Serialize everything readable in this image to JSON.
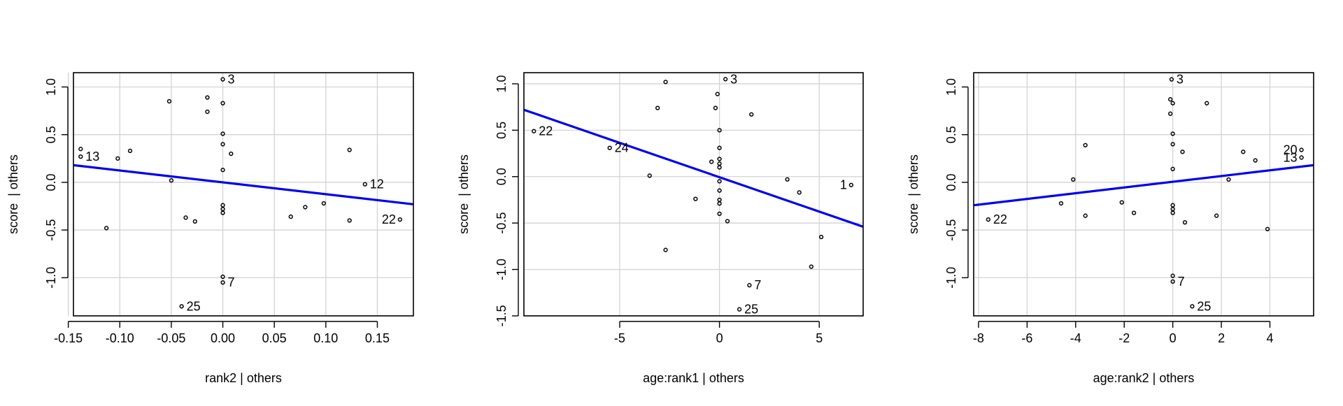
{
  "colors": {
    "fit_line": "#0000ee",
    "grid": "#d3d3d3",
    "frame": "#000000",
    "point": "#000000"
  },
  "chart_data": [
    {
      "type": "scatter",
      "xlabel": "rank2 | others",
      "ylabel": "score  | others",
      "xlim": [
        -0.145,
        0.185
      ],
      "ylim": [
        -1.4,
        1.15
      ],
      "xticks": [
        -0.15,
        -0.1,
        -0.05,
        0.0,
        0.05,
        0.1,
        0.15
      ],
      "xtick_labels": [
        "-0.15",
        "-0.10",
        "-0.05",
        "0.00",
        "0.05",
        "0.10",
        "0.15"
      ],
      "yticks": [
        -1.0,
        -0.5,
        0.0,
        0.5,
        1.0
      ],
      "ytick_labels": [
        "-1.0",
        "-0.5",
        "0.0",
        "0.5",
        "1.0"
      ],
      "grid": true,
      "fit_line": {
        "x": [
          -0.145,
          0.185
        ],
        "y": [
          0.18,
          -0.23
        ]
      },
      "points": [
        {
          "x": 0.0,
          "y": 1.08,
          "label": "3"
        },
        {
          "x": -0.052,
          "y": 0.85,
          "label": ""
        },
        {
          "x": -0.015,
          "y": 0.89,
          "label": ""
        },
        {
          "x": -0.015,
          "y": 0.74,
          "label": ""
        },
        {
          "x": 0.0,
          "y": 0.83,
          "label": ""
        },
        {
          "x": 0.0,
          "y": 0.51,
          "label": ""
        },
        {
          "x": 0.0,
          "y": 0.4,
          "label": ""
        },
        {
          "x": 0.008,
          "y": 0.3,
          "label": ""
        },
        {
          "x": 0.0,
          "y": 0.13,
          "label": ""
        },
        {
          "x": -0.138,
          "y": 0.35,
          "label": ""
        },
        {
          "x": -0.138,
          "y": 0.27,
          "label": "13"
        },
        {
          "x": -0.102,
          "y": 0.25,
          "label": ""
        },
        {
          "x": -0.09,
          "y": 0.33,
          "label": ""
        },
        {
          "x": -0.05,
          "y": 0.02,
          "label": ""
        },
        {
          "x": 0.123,
          "y": 0.34,
          "label": ""
        },
        {
          "x": 0.138,
          "y": -0.02,
          "label": "12"
        },
        {
          "x": 0.0,
          "y": -0.24,
          "label": ""
        },
        {
          "x": 0.0,
          "y": -0.28,
          "label": ""
        },
        {
          "x": 0.0,
          "y": -0.32,
          "label": ""
        },
        {
          "x": -0.036,
          "y": -0.37,
          "label": ""
        },
        {
          "x": -0.027,
          "y": -0.41,
          "label": ""
        },
        {
          "x": -0.113,
          "y": -0.48,
          "label": ""
        },
        {
          "x": 0.066,
          "y": -0.36,
          "label": ""
        },
        {
          "x": 0.08,
          "y": -0.26,
          "label": ""
        },
        {
          "x": 0.098,
          "y": -0.22,
          "label": ""
        },
        {
          "x": 0.123,
          "y": -0.4,
          "label": ""
        },
        {
          "x": 0.172,
          "y": -0.39,
          "label": "22"
        },
        {
          "x": 0.0,
          "y": -0.99,
          "label": ""
        },
        {
          "x": 0.0,
          "y": -1.05,
          "label": "7"
        },
        {
          "x": -0.04,
          "y": -1.3,
          "label": "25"
        }
      ]
    },
    {
      "type": "scatter",
      "xlabel": "age:rank1 | others",
      "ylabel": "score  | others",
      "xlim": [
        -9.8,
        7.2
      ],
      "ylim": [
        -1.5,
        1.12
      ],
      "xticks": [
        -5,
        0,
        5
      ],
      "xtick_labels": [
        "-5",
        "0",
        "5"
      ],
      "yticks": [
        -1.5,
        -1.0,
        -0.5,
        0.0,
        0.5,
        1.0
      ],
      "ytick_labels": [
        "-1.5",
        "-1.0",
        "-0.5",
        "0.0",
        "0.5",
        "1.0"
      ],
      "grid": true,
      "fit_line": {
        "x": [
          -9.8,
          7.2
        ],
        "y": [
          0.72,
          -0.54
        ]
      },
      "points": [
        {
          "x": 0.3,
          "y": 1.05,
          "label": "3"
        },
        {
          "x": -2.7,
          "y": 1.02,
          "label": ""
        },
        {
          "x": -0.1,
          "y": 0.89,
          "label": ""
        },
        {
          "x": -3.1,
          "y": 0.74,
          "label": ""
        },
        {
          "x": -0.2,
          "y": 0.74,
          "label": ""
        },
        {
          "x": 1.6,
          "y": 0.67,
          "label": ""
        },
        {
          "x": 0.0,
          "y": 0.5,
          "label": ""
        },
        {
          "x": -9.3,
          "y": 0.49,
          "label": "22"
        },
        {
          "x": -5.5,
          "y": 0.31,
          "label": "24"
        },
        {
          "x": 0.0,
          "y": 0.31,
          "label": ""
        },
        {
          "x": 0.0,
          "y": 0.19,
          "label": ""
        },
        {
          "x": -0.4,
          "y": 0.16,
          "label": ""
        },
        {
          "x": 0.0,
          "y": 0.14,
          "label": ""
        },
        {
          "x": 0.0,
          "y": 0.1,
          "label": ""
        },
        {
          "x": -3.5,
          "y": 0.01,
          "label": ""
        },
        {
          "x": 0.0,
          "y": -0.05,
          "label": ""
        },
        {
          "x": 3.4,
          "y": -0.03,
          "label": ""
        },
        {
          "x": 6.6,
          "y": -0.09,
          "label": "1"
        },
        {
          "x": 0.0,
          "y": -0.15,
          "label": ""
        },
        {
          "x": 4.0,
          "y": -0.17,
          "label": ""
        },
        {
          "x": -1.2,
          "y": -0.24,
          "label": ""
        },
        {
          "x": 0.0,
          "y": -0.25,
          "label": ""
        },
        {
          "x": 0.0,
          "y": -0.29,
          "label": ""
        },
        {
          "x": 0.0,
          "y": -0.4,
          "label": ""
        },
        {
          "x": 0.4,
          "y": -0.48,
          "label": ""
        },
        {
          "x": 5.1,
          "y": -0.65,
          "label": ""
        },
        {
          "x": -2.7,
          "y": -0.79,
          "label": ""
        },
        {
          "x": 4.6,
          "y": -0.97,
          "label": ""
        },
        {
          "x": 1.5,
          "y": -1.17,
          "label": "7"
        },
        {
          "x": 1.0,
          "y": -1.43,
          "label": "25"
        }
      ]
    },
    {
      "type": "scatter",
      "xlabel": "age:rank2 | others",
      "ylabel": "score  | others",
      "xlim": [
        -8.2,
        5.8
      ],
      "ylim": [
        -1.4,
        1.15
      ],
      "xticks": [
        -8,
        -6,
        -4,
        -2,
        0,
        2,
        4
      ],
      "xtick_labels": [
        "-8",
        "-6",
        "-4",
        "-2",
        "0",
        "2",
        "4"
      ],
      "yticks": [
        -1.0,
        -0.5,
        0.0,
        0.5,
        1.0
      ],
      "ytick_labels": [
        "-1.0",
        "-0.5",
        "0.0",
        "0.5",
        "1.0"
      ],
      "grid": true,
      "fit_line": {
        "x": [
          -8.2,
          5.8
        ],
        "y": [
          -0.24,
          0.18
        ]
      },
      "points": [
        {
          "x": -0.05,
          "y": 1.08,
          "label": "3"
        },
        {
          "x": -0.1,
          "y": 0.87,
          "label": ""
        },
        {
          "x": 0.0,
          "y": 0.83,
          "label": ""
        },
        {
          "x": 1.4,
          "y": 0.83,
          "label": ""
        },
        {
          "x": -0.1,
          "y": 0.72,
          "label": ""
        },
        {
          "x": 0.0,
          "y": 0.51,
          "label": ""
        },
        {
          "x": 0.0,
          "y": 0.4,
          "label": ""
        },
        {
          "x": -3.6,
          "y": 0.39,
          "label": ""
        },
        {
          "x": 0.4,
          "y": 0.32,
          "label": ""
        },
        {
          "x": 2.9,
          "y": 0.32,
          "label": ""
        },
        {
          "x": 5.3,
          "y": 0.34,
          "label": "20"
        },
        {
          "x": 5.3,
          "y": 0.26,
          "label": "13"
        },
        {
          "x": 3.4,
          "y": 0.23,
          "label": ""
        },
        {
          "x": 0.0,
          "y": 0.14,
          "label": ""
        },
        {
          "x": -4.1,
          "y": 0.03,
          "label": ""
        },
        {
          "x": 2.3,
          "y": 0.03,
          "label": ""
        },
        {
          "x": -4.6,
          "y": -0.22,
          "label": ""
        },
        {
          "x": -2.1,
          "y": -0.21,
          "label": ""
        },
        {
          "x": 0.0,
          "y": -0.24,
          "label": ""
        },
        {
          "x": 0.0,
          "y": -0.28,
          "label": ""
        },
        {
          "x": -1.6,
          "y": -0.32,
          "label": ""
        },
        {
          "x": 0.0,
          "y": -0.32,
          "label": ""
        },
        {
          "x": -3.6,
          "y": -0.35,
          "label": ""
        },
        {
          "x": 1.8,
          "y": -0.35,
          "label": ""
        },
        {
          "x": 0.5,
          "y": -0.42,
          "label": ""
        },
        {
          "x": -7.6,
          "y": -0.39,
          "label": "22"
        },
        {
          "x": 3.9,
          "y": -0.49,
          "label": ""
        },
        {
          "x": 0.0,
          "y": -0.98,
          "label": ""
        },
        {
          "x": 0.0,
          "y": -1.04,
          "label": "7"
        },
        {
          "x": 0.8,
          "y": -1.3,
          "label": "25"
        }
      ]
    }
  ]
}
